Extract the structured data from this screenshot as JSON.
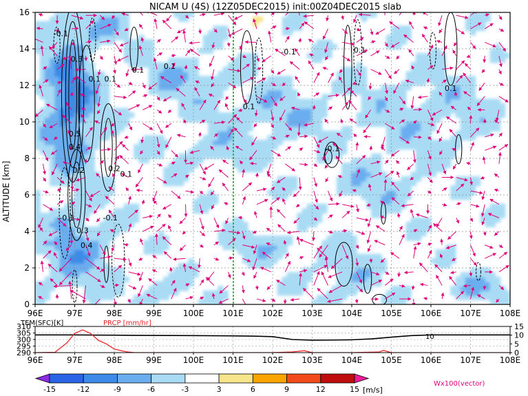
{
  "title": "NICAM U (4S) (12Z05DEC2015) init:00Z04DEC2015 slab",
  "main_chart": {
    "ylabel": "ALTITUDE [km]",
    "x_ticks": [
      "96E",
      "97E",
      "98E",
      "99E",
      "100E",
      "101E",
      "102E",
      "103E",
      "104E",
      "105E",
      "106E",
      "107E",
      "108E"
    ],
    "y_ticks": [
      "0",
      "2",
      "4",
      "6",
      "8",
      "10",
      "12",
      "14",
      "16"
    ],
    "contour_labels": [
      "-0.1",
      "0.3",
      "0.1",
      "0.1",
      "0.1",
      "0.5",
      "0.4",
      "0.2",
      "0.2",
      "0.1",
      "0.1",
      "-0.1",
      "0.3",
      "-0.1",
      "0.4",
      "-0.1",
      "0.1",
      "0.1",
      "-0.1",
      "0.1"
    ],
    "vector_legend": "Wx100(vector)"
  },
  "sub_chart": {
    "tem_label": "TEM(SFC)[K]",
    "prcp_label": "PRCP [mm/hr]",
    "left_ticks": [
      "310",
      "305",
      "300",
      "295",
      "290"
    ],
    "right_ticks": [
      "15",
      "10",
      "5",
      "0"
    ],
    "x_ticks": [
      "96E",
      "97E",
      "98E",
      "99E",
      "100E",
      "101E",
      "102E",
      "103E",
      "104E",
      "105E",
      "106E",
      "107E",
      "108E"
    ],
    "annotation": "10"
  },
  "colorbar": {
    "ticks": [
      "-15",
      "-12",
      "-9",
      "-6",
      "-3",
      "3",
      "6",
      "9",
      "12",
      "15"
    ],
    "unit": "[m/s]"
  },
  "colors": {
    "vectors": "#e0007a",
    "marker_line": "#22aa22",
    "prcp": "#e8262a",
    "tem": "#000000"
  },
  "chart_data": [
    {
      "type": "heatmap",
      "title": "NICAM U (4S) (12Z05DEC2015) init:00Z04DEC2015 slab",
      "xlabel": "",
      "ylabel": "ALTITUDE [km]",
      "xlim": [
        96,
        108
      ],
      "ylim": [
        0,
        16
      ],
      "x_units": "degrees east",
      "y_units": "km",
      "field": "zonal wind U [m/s], shaded",
      "colorbar_levels": [
        -15,
        -12,
        -9,
        -6,
        -3,
        3,
        6,
        9,
        12,
        15
      ],
      "colorbar_colors": [
        "#8a2be2",
        "#2a64e6",
        "#3d8ae8",
        "#6aaef0",
        "#a9dcf4",
        "#ffffff",
        "#f7e58c",
        "#fba400",
        "#f24a1a",
        "#bf0d0d",
        "#ee1c98"
      ],
      "vertical_marker_lon": 101.0
    },
    {
      "type": "line",
      "title": "",
      "xlim": [
        96,
        108
      ],
      "series": [
        {
          "name": "TEM(SFC)[K]",
          "axis": "left",
          "ylim": [
            290,
            310
          ],
          "x": [
            96,
            96.5,
            97,
            97.5,
            98,
            98.5,
            99,
            100,
            101,
            101.5,
            102,
            102.5,
            103,
            103.5,
            104,
            104.5,
            105,
            105.5,
            106,
            107,
            108
          ],
          "y": [
            303.5,
            303.5,
            303.5,
            303.4,
            303.3,
            303.2,
            303.1,
            303.0,
            302.8,
            302.6,
            302.2,
            300.0,
            299.5,
            299.6,
            299.8,
            300.5,
            301.8,
            303.0,
            303.5,
            303.5,
            303.5
          ]
        },
        {
          "name": "PRCP [mm/hr]",
          "axis": "right",
          "ylim": [
            0,
            15
          ],
          "x": [
            96,
            96.5,
            96.8,
            97,
            97.2,
            97.4,
            97.6,
            97.8,
            98.0,
            98.3,
            98.5,
            99,
            100,
            102,
            102.5,
            102.8,
            103,
            104,
            104.7,
            104.8,
            105,
            106,
            107,
            108
          ],
          "y": [
            0,
            0.2,
            5.5,
            11,
            13,
            11,
            7,
            5,
            2,
            0.5,
            0,
            0,
            0,
            0,
            0.4,
            1.1,
            0,
            0,
            0.4,
            1.3,
            0,
            0,
            0,
            0
          ]
        }
      ]
    }
  ]
}
